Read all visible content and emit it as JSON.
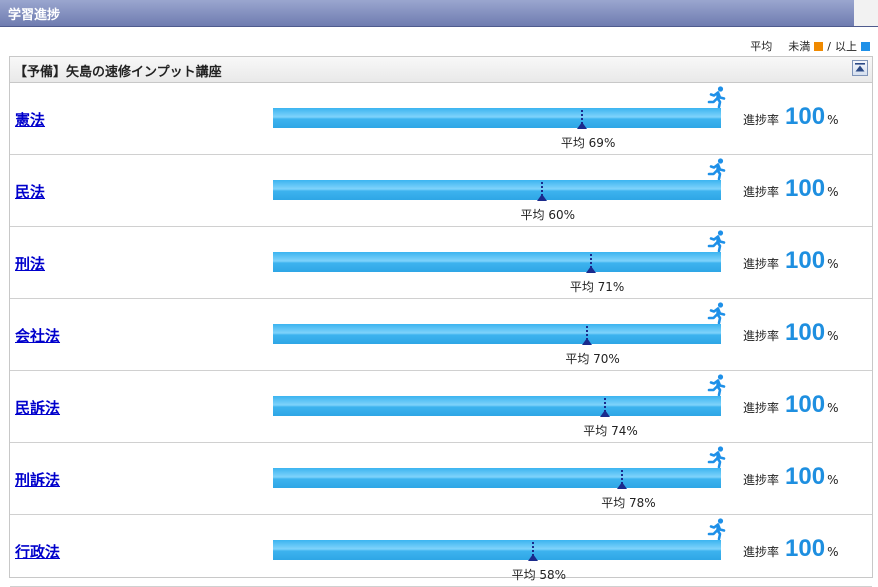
{
  "window": {
    "title": "学習進捗"
  },
  "legend": {
    "label": "平均",
    "below": "未満",
    "separator": "/",
    "above": "以上",
    "below_color": "#f08a00",
    "above_color": "#1e90e8"
  },
  "course": {
    "name": "【予備】矢島の速修インプット講座",
    "collapse_icon": "collapse-up-icon"
  },
  "rate_label": "進捗率",
  "percent_sign": "%",
  "subjects": [
    {
      "name": "憲法",
      "progress": 100,
      "avg": 69,
      "avg_text": "平均 69%",
      "rate": "100"
    },
    {
      "name": "民法",
      "progress": 100,
      "avg": 60,
      "avg_text": "平均 60%",
      "rate": "100"
    },
    {
      "name": "刑法",
      "progress": 100,
      "avg": 71,
      "avg_text": "平均 71%",
      "rate": "100"
    },
    {
      "name": "会社法",
      "progress": 100,
      "avg": 70,
      "avg_text": "平均 70%",
      "rate": "100"
    },
    {
      "name": "民訴法",
      "progress": 100,
      "avg": 74,
      "avg_text": "平均 74%",
      "rate": "100"
    },
    {
      "name": "刑訴法",
      "progress": 100,
      "avg": 78,
      "avg_text": "平均 78%",
      "rate": "100"
    },
    {
      "name": "行政法",
      "progress": 100,
      "avg": 58,
      "avg_text": "平均 58%",
      "rate": "100"
    }
  ]
}
